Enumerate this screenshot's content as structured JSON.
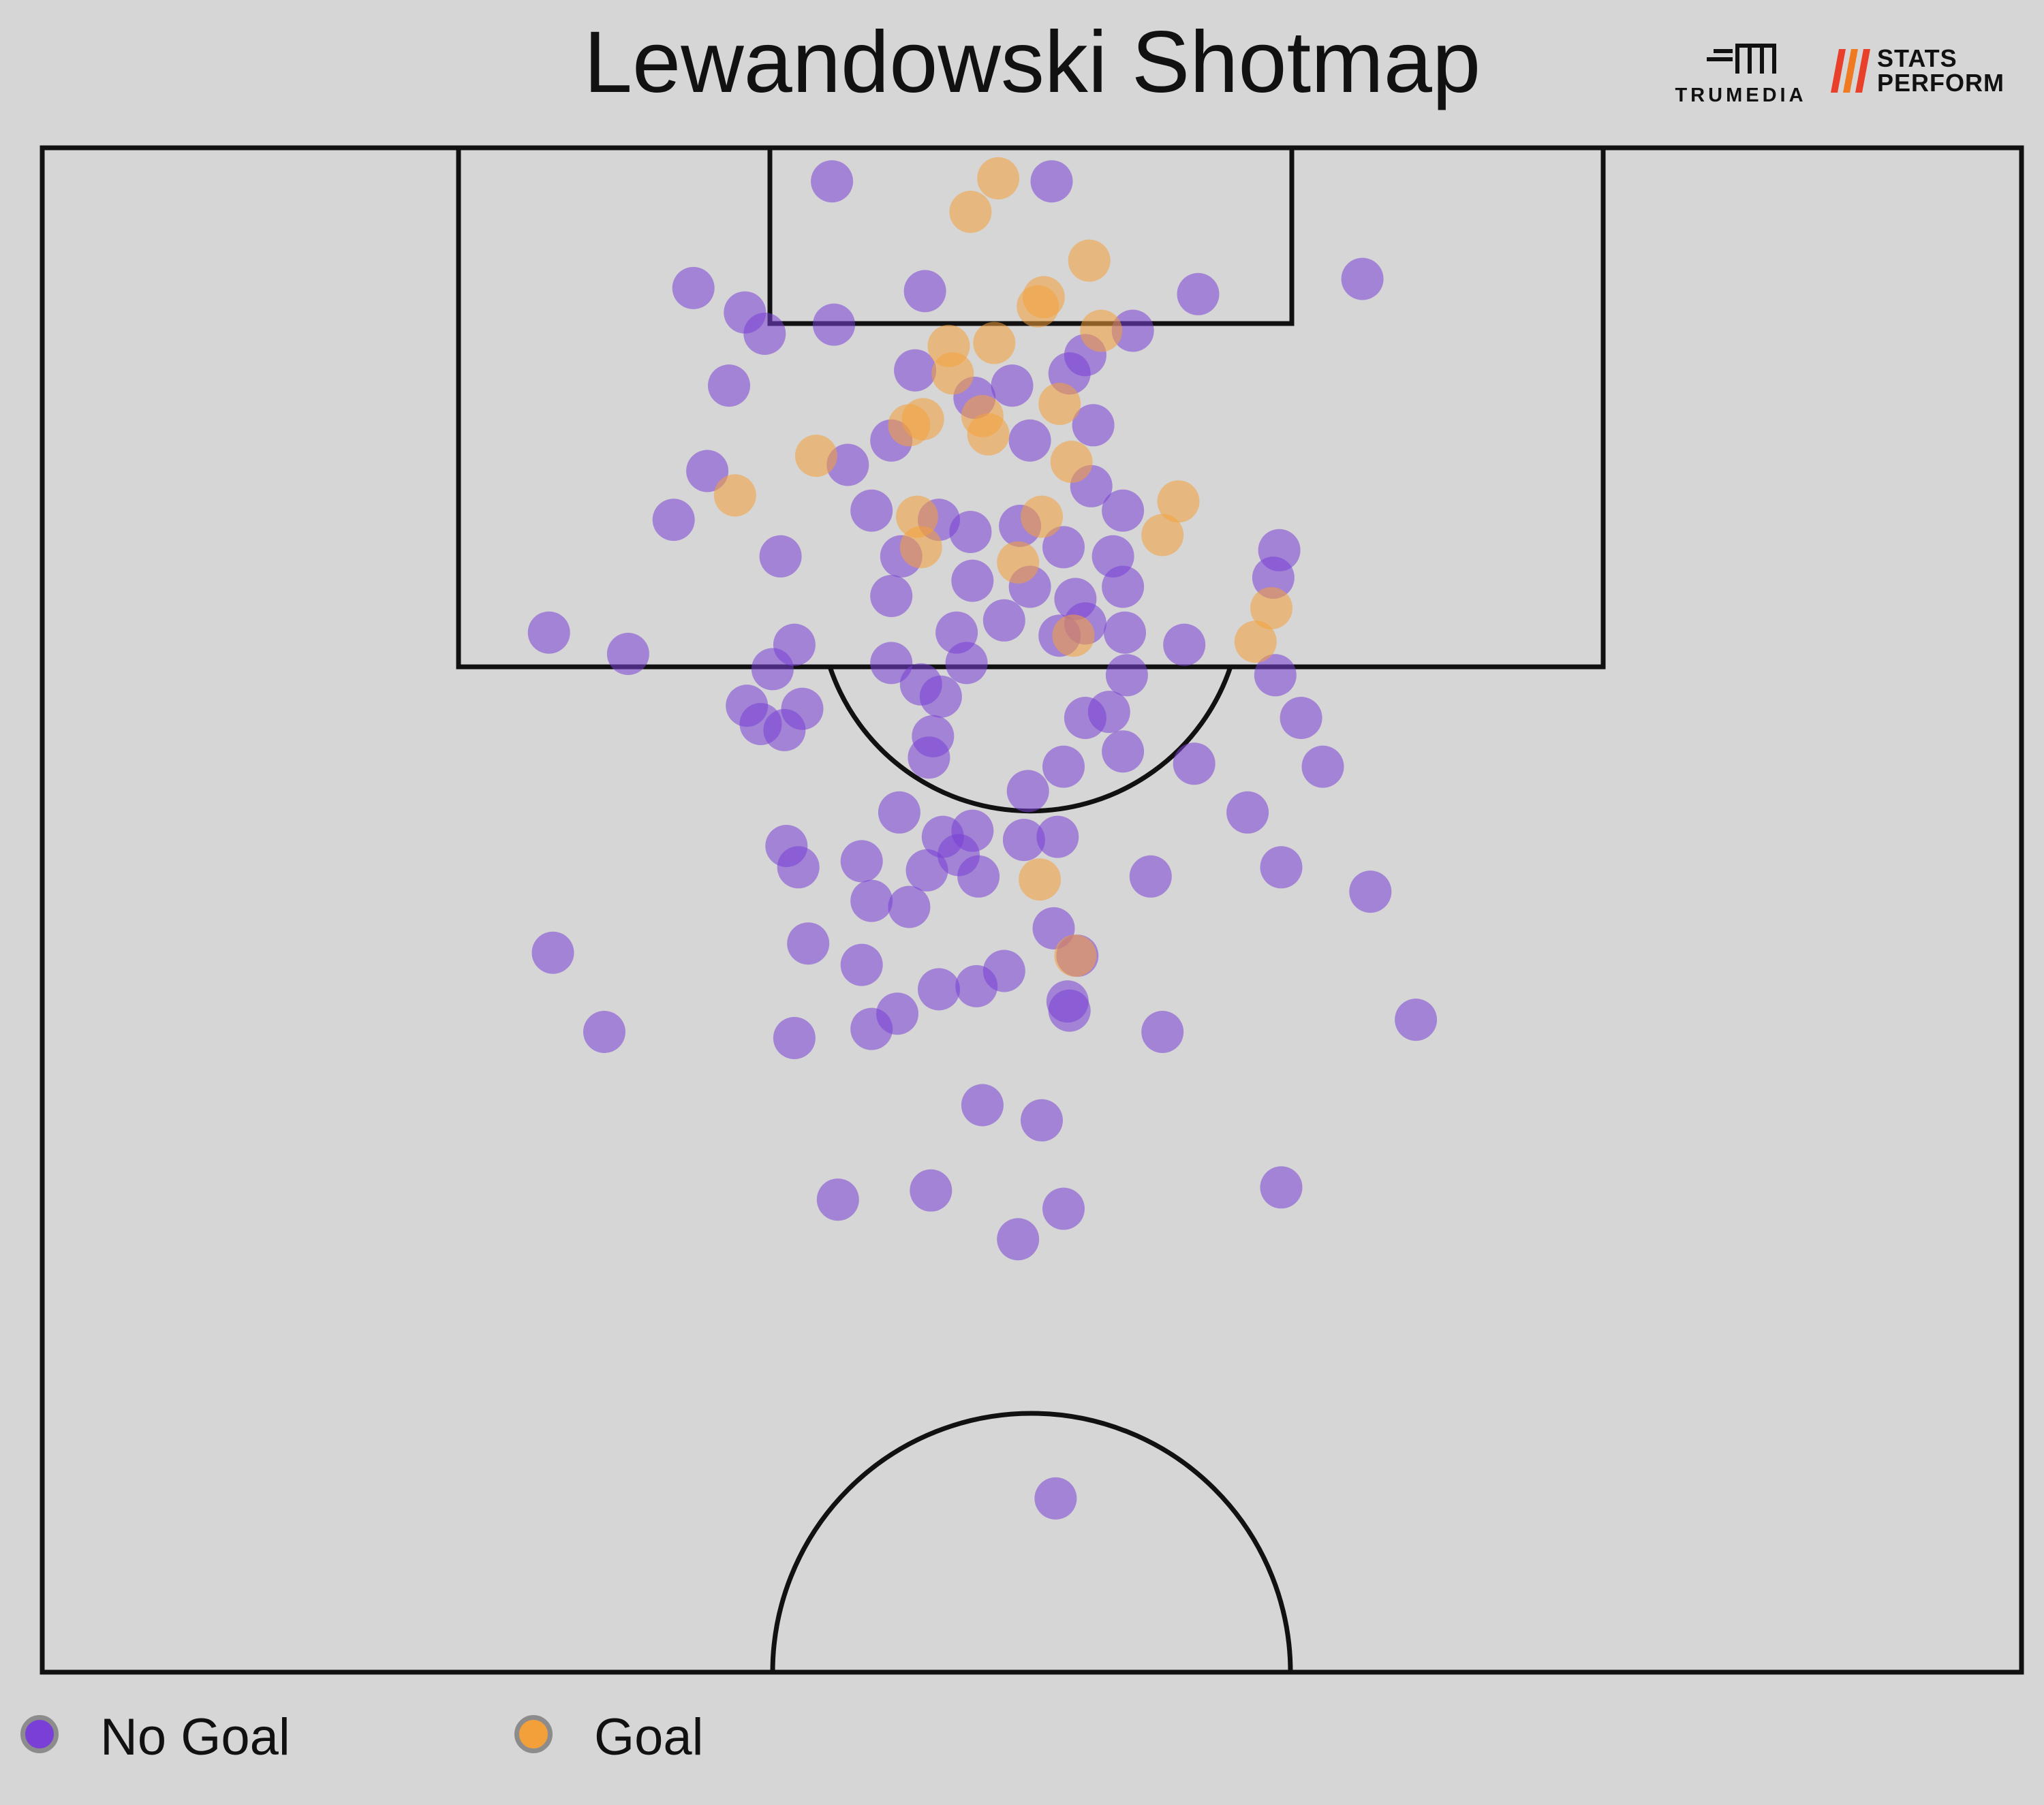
{
  "chart_data": {
    "type": "scatter",
    "title": "Lewandowski Shotmap",
    "xlabel": "",
    "ylabel": "",
    "legend_position": "bottom-left",
    "grid": false,
    "pitch_view": "half-pitch, goal at top",
    "x_range": [
      0,
      100
    ],
    "y_range": [
      50,
      100
    ],
    "coordinate_note": "x = pitch width %, y = pitch length % toward goal (100 = goal line)",
    "series": [
      {
        "name": "No Goal",
        "color": "#7a3fd6",
        "points": [
          [
            39.9,
            98.9
          ],
          [
            51.0,
            98.9
          ],
          [
            66.7,
            95.7
          ],
          [
            32.9,
            95.4
          ],
          [
            35.5,
            94.6
          ],
          [
            44.6,
            95.3
          ],
          [
            40.0,
            94.2
          ],
          [
            36.5,
            93.9
          ],
          [
            55.1,
            94.0
          ],
          [
            58.4,
            95.2
          ],
          [
            52.7,
            93.2
          ],
          [
            34.7,
            92.2
          ],
          [
            44.1,
            92.7
          ],
          [
            47.1,
            91.8
          ],
          [
            49.0,
            92.2
          ],
          [
            51.9,
            92.6
          ],
          [
            33.6,
            89.4
          ],
          [
            40.7,
            89.6
          ],
          [
            42.9,
            90.4
          ],
          [
            49.9,
            90.4
          ],
          [
            53.1,
            90.9
          ],
          [
            31.9,
            87.8
          ],
          [
            41.9,
            88.1
          ],
          [
            45.3,
            87.8
          ],
          [
            46.9,
            87.4
          ],
          [
            49.4,
            87.6
          ],
          [
            53.0,
            88.9
          ],
          [
            54.6,
            88.1
          ],
          [
            37.3,
            86.6
          ],
          [
            43.4,
            86.6
          ],
          [
            51.6,
            86.9
          ],
          [
            54.1,
            86.6
          ],
          [
            62.5,
            86.8
          ],
          [
            42.9,
            85.3
          ],
          [
            47.0,
            85.8
          ],
          [
            49.9,
            85.6
          ],
          [
            52.2,
            85.2
          ],
          [
            54.6,
            85.6
          ],
          [
            62.2,
            85.9
          ],
          [
            25.6,
            84.1
          ],
          [
            29.6,
            83.4
          ],
          [
            38.0,
            83.7
          ],
          [
            46.2,
            84.1
          ],
          [
            48.6,
            84.5
          ],
          [
            52.7,
            84.4
          ],
          [
            54.7,
            84.1
          ],
          [
            57.7,
            83.7
          ],
          [
            36.9,
            82.9
          ],
          [
            42.9,
            83.1
          ],
          [
            44.4,
            82.4
          ],
          [
            46.7,
            83.1
          ],
          [
            51.4,
            84.0
          ],
          [
            54.8,
            82.7
          ],
          [
            62.3,
            82.7
          ],
          [
            35.6,
            81.7
          ],
          [
            38.4,
            81.6
          ],
          [
            45.4,
            82.0
          ],
          [
            53.9,
            81.5
          ],
          [
            36.3,
            81.1
          ],
          [
            37.5,
            80.9
          ],
          [
            45.0,
            80.7
          ],
          [
            52.7,
            81.3
          ],
          [
            63.6,
            81.3
          ],
          [
            44.8,
            80.0
          ],
          [
            51.6,
            79.7
          ],
          [
            54.6,
            80.2
          ],
          [
            58.2,
            79.8
          ],
          [
            64.7,
            79.7
          ],
          [
            43.3,
            78.2
          ],
          [
            49.8,
            78.9
          ],
          [
            60.9,
            78.2
          ],
          [
            51.3,
            77.4
          ],
          [
            37.6,
            77.1
          ],
          [
            45.5,
            77.4
          ],
          [
            47.0,
            77.6
          ],
          [
            49.6,
            77.3
          ],
          [
            46.3,
            76.8
          ],
          [
            44.7,
            76.3
          ],
          [
            47.3,
            76.1
          ],
          [
            56.0,
            76.1
          ],
          [
            38.2,
            76.4
          ],
          [
            41.4,
            76.6
          ],
          [
            62.6,
            76.4
          ],
          [
            41.9,
            75.3
          ],
          [
            67.1,
            75.6
          ],
          [
            43.8,
            75.1
          ],
          [
            25.8,
            73.6
          ],
          [
            38.7,
            73.9
          ],
          [
            51.1,
            74.4
          ],
          [
            41.4,
            73.2
          ],
          [
            52.3,
            73.5
          ],
          [
            45.3,
            72.4
          ],
          [
            48.6,
            73.0
          ],
          [
            47.2,
            72.5
          ],
          [
            51.8,
            72.0
          ],
          [
            41.9,
            71.1
          ],
          [
            43.2,
            71.6
          ],
          [
            51.9,
            71.7
          ],
          [
            28.4,
            71.0
          ],
          [
            38.0,
            70.8
          ],
          [
            56.6,
            71.0
          ],
          [
            69.4,
            71.4
          ],
          [
            47.5,
            68.6
          ],
          [
            50.5,
            68.1
          ],
          [
            62.6,
            65.9
          ],
          [
            40.2,
            65.5
          ],
          [
            44.9,
            65.8
          ],
          [
            51.6,
            65.2
          ],
          [
            49.3,
            64.2
          ],
          [
            51.2,
            55.7
          ]
        ]
      },
      {
        "name": "Goal",
        "color": "#f4a03a",
        "points": [
          [
            48.3,
            99.0
          ],
          [
            46.9,
            97.9
          ],
          [
            52.9,
            96.3
          ],
          [
            50.6,
            95.1
          ],
          [
            50.3,
            94.8
          ],
          [
            45.8,
            93.5
          ],
          [
            48.1,
            93.6
          ],
          [
            53.5,
            94.0
          ],
          [
            46.0,
            92.6
          ],
          [
            44.5,
            91.1
          ],
          [
            47.5,
            91.2
          ],
          [
            51.4,
            91.6
          ],
          [
            43.8,
            90.9
          ],
          [
            47.8,
            90.6
          ],
          [
            52.0,
            89.7
          ],
          [
            39.1,
            89.9
          ],
          [
            35.0,
            88.6
          ],
          [
            57.4,
            88.4
          ],
          [
            44.2,
            87.9
          ],
          [
            50.5,
            87.9
          ],
          [
            56.6,
            87.3
          ],
          [
            44.4,
            86.9
          ],
          [
            49.3,
            86.4
          ],
          [
            62.1,
            84.9
          ],
          [
            52.1,
            84.0
          ],
          [
            61.3,
            83.8
          ],
          [
            50.4,
            76.0
          ],
          [
            52.2,
            73.5
          ]
        ]
      }
    ]
  },
  "legend": {
    "no_goal": {
      "label": "No Goal",
      "color": "#7a3fd6"
    },
    "goal": {
      "label": "Goal",
      "color": "#f4a03a"
    }
  },
  "logos": {
    "trumedia": "TRUMEDIA",
    "stats_line1": "STATS",
    "stats_line2": "PERFORM"
  }
}
